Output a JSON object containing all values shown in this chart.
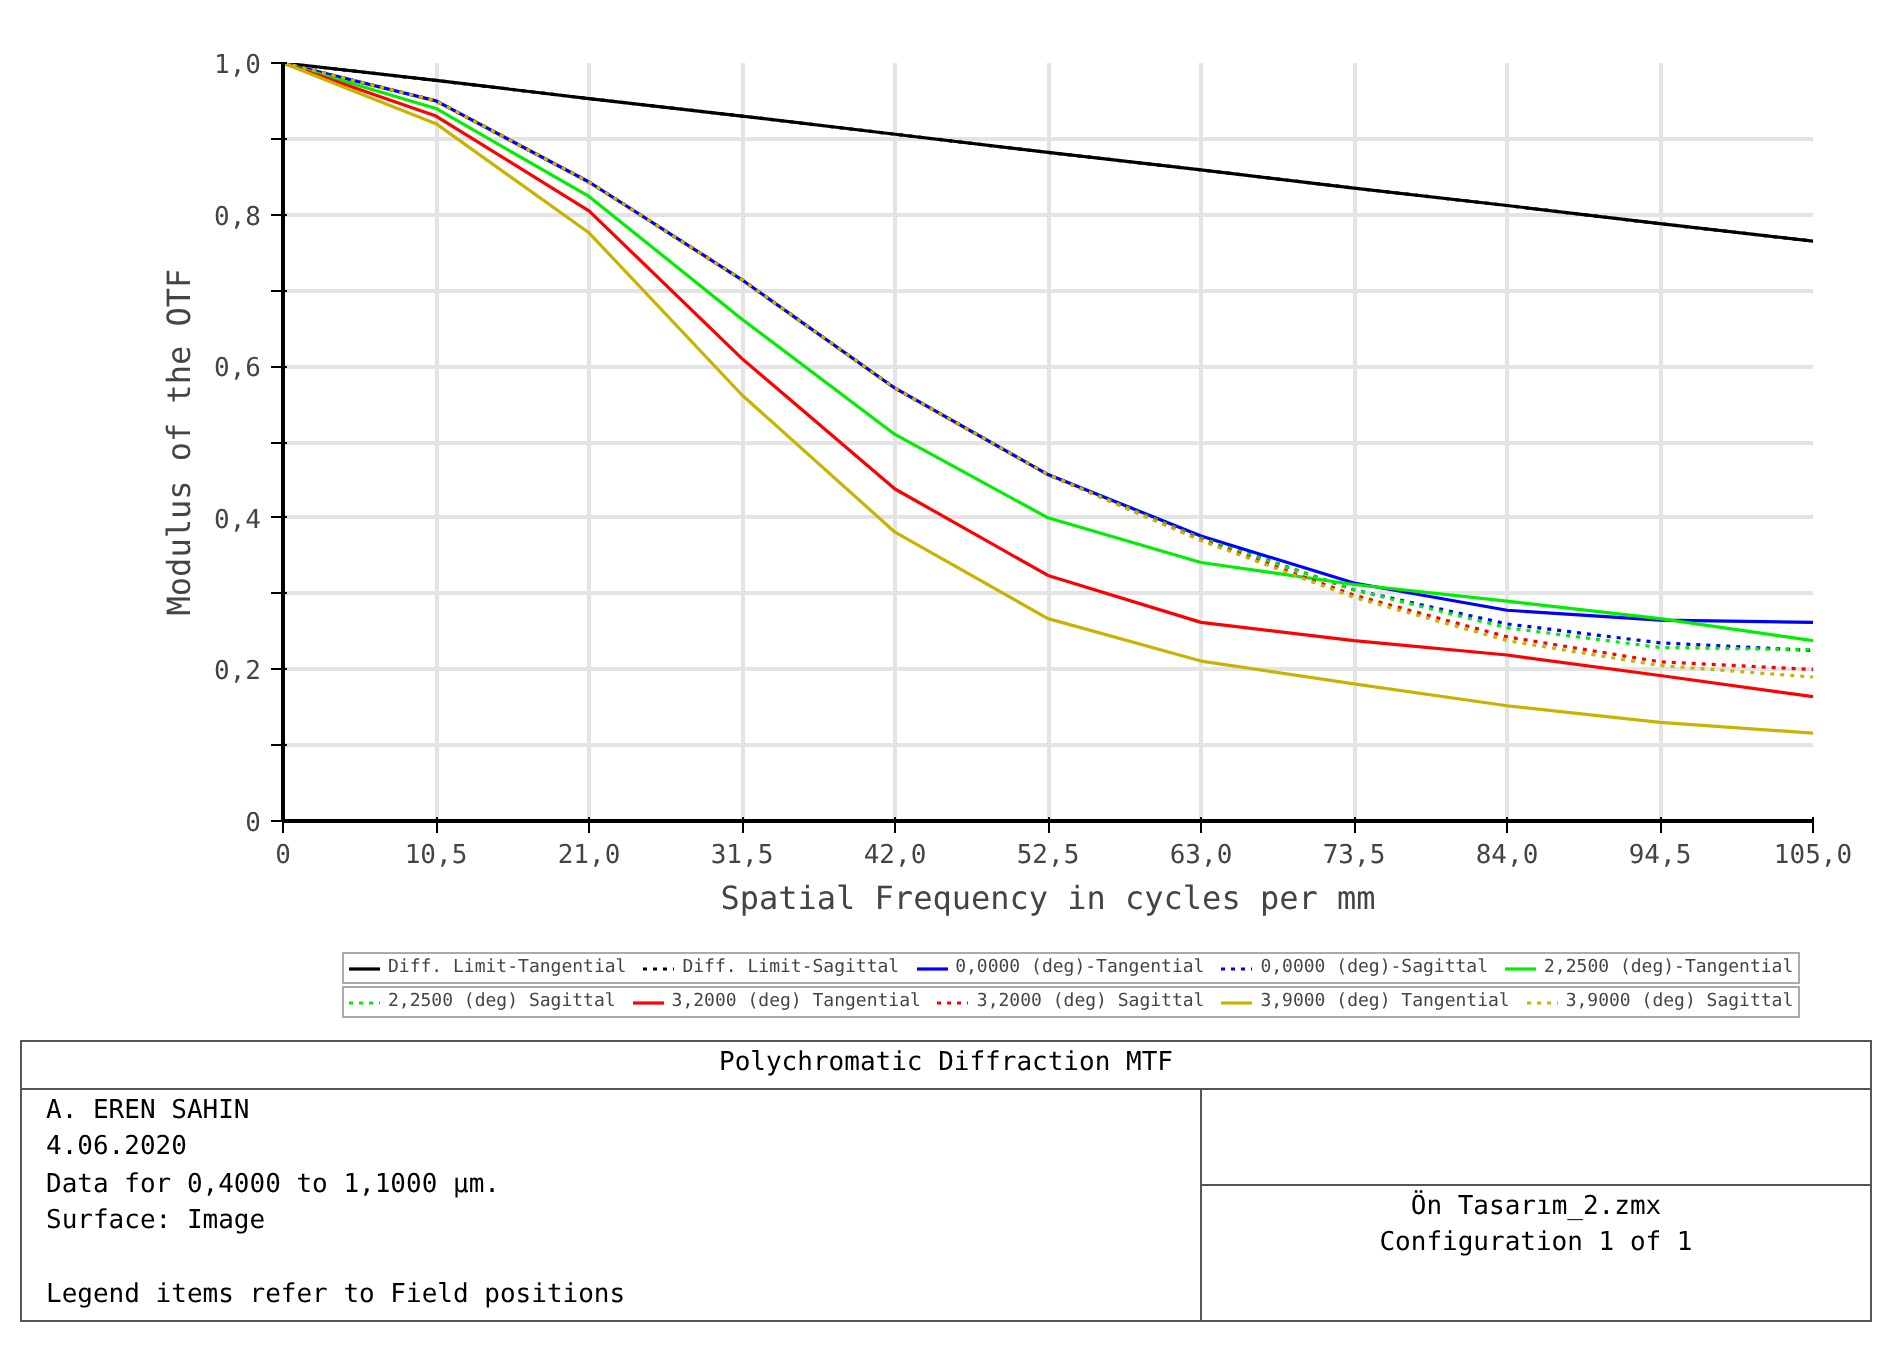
{
  "chart_data": {
    "type": "line",
    "title": "Polychromatic Diffraction MTF",
    "xlabel": "Spatial Frequency in cycles per mm",
    "ylabel": "Modulus of the OTF",
    "xlim": [
      0,
      105
    ],
    "ylim": [
      0,
      1
    ],
    "xticks": [
      0,
      {
        "value": 10.5,
        "label": "10,5"
      },
      {
        "value": 21,
        "label": "21,0"
      },
      {
        "value": 31.5,
        "label": "31,5"
      },
      {
        "value": 42,
        "label": "42,0"
      },
      {
        "value": 52.5,
        "label": "52,5"
      },
      {
        "value": 63,
        "label": "63,0"
      },
      {
        "value": 73.5,
        "label": "73,5"
      },
      {
        "value": 84,
        "label": "84,0"
      },
      {
        "value": 94.5,
        "label": "94,5"
      },
      {
        "value": 105,
        "label": "105,0"
      }
    ],
    "yticks": [
      0,
      {
        "value": 0.1,
        "label": null
      },
      {
        "value": 0.2,
        "label": "0,2"
      },
      {
        "value": 0.3,
        "label": null
      },
      {
        "value": 0.4,
        "label": "0,4"
      },
      {
        "value": 0.5,
        "label": null
      },
      {
        "value": 0.6,
        "label": "0,6"
      },
      {
        "value": 0.7,
        "label": null
      },
      {
        "value": 0.8,
        "label": "0,8"
      },
      {
        "value": 0.9,
        "label": null
      },
      {
        "value": 1,
        "label": "1,0"
      }
    ],
    "x": [
      0,
      10.5,
      21,
      31.5,
      42,
      52.5,
      63,
      73.5,
      84,
      94.5,
      105
    ],
    "grid": true,
    "legend": "bottom",
    "marker": "none",
    "series": [
      {
        "name": "Diff. Limit-Tangential",
        "color": "#000000",
        "line_style": "solid",
        "values": [
          1,
          0.977,
          0.953,
          0.93,
          0.906,
          0.882,
          0.859,
          0.835,
          0.812,
          0.788,
          0.765
        ]
      },
      {
        "name": "Diff. Limit-Sagittal",
        "color": "#000000",
        "line_style": "dotted",
        "values": [
          1,
          0.977,
          0.953,
          0.93,
          0.906,
          0.882,
          0.859,
          0.835,
          0.812,
          0.788,
          0.765
        ]
      },
      {
        "name": "0,0000 (deg)-Tangential",
        "color": "#0000ff",
        "line_style": "solid",
        "values": [
          1,
          0.95,
          0.843,
          0.714,
          0.571,
          0.457,
          0.376,
          0.314,
          0.278,
          0.265,
          0.262
        ]
      },
      {
        "name": "0,0000 (deg)-Sagittal",
        "color": "#0000ff",
        "line_style": "dotted",
        "values": [
          1,
          0.95,
          0.843,
          0.714,
          0.571,
          0.457,
          0.374,
          0.305,
          0.26,
          0.235,
          0.225
        ]
      },
      {
        "name": "2,2500 (deg)-Tangential",
        "color": "#00ee00",
        "line_style": "solid",
        "values": [
          1,
          0.94,
          0.824,
          0.662,
          0.51,
          0.4,
          0.341,
          0.312,
          0.29,
          0.267,
          0.238
        ]
      },
      {
        "name": "2,2500 (deg) Sagittal",
        "color": "#00ee00",
        "line_style": "dotted",
        "values": [
          1,
          0.95,
          0.843,
          0.714,
          0.571,
          0.457,
          0.373,
          0.305,
          0.255,
          0.229,
          0.226
        ]
      },
      {
        "name": "3,2000 (deg) Tangential",
        "color": "#ff0000",
        "line_style": "solid",
        "values": [
          1,
          0.93,
          0.805,
          0.61,
          0.438,
          0.324,
          0.262,
          0.238,
          0.219,
          0.192,
          0.164
        ]
      },
      {
        "name": "3,2000 (deg) Sagittal",
        "color": "#ff0000",
        "line_style": "dotted",
        "values": [
          1,
          0.95,
          0.843,
          0.714,
          0.571,
          0.457,
          0.371,
          0.298,
          0.243,
          0.21,
          0.2
        ]
      },
      {
        "name": "3,9000 (deg) Tangential",
        "color": "#c8b400",
        "line_style": "solid",
        "values": [
          1,
          0.92,
          0.776,
          0.562,
          0.381,
          0.267,
          0.211,
          0.181,
          0.152,
          0.13,
          0.116
        ]
      },
      {
        "name": "3,9000 (deg) Sagittal",
        "color": "#c8b400",
        "line_style": "dotted",
        "values": [
          1,
          0.95,
          0.843,
          0.714,
          0.571,
          0.457,
          0.37,
          0.295,
          0.238,
          0.205,
          0.19
        ]
      }
    ],
    "annotations": [
      "A. EREN SAHIN",
      "4.06.2020",
      "Data for 0,4000 to 1,1000 µm.",
      "Surface: Image",
      "Legend items refer to Field positions",
      "Ön Tasarım_2.zmx",
      "Configuration 1 of 1"
    ]
  }
}
